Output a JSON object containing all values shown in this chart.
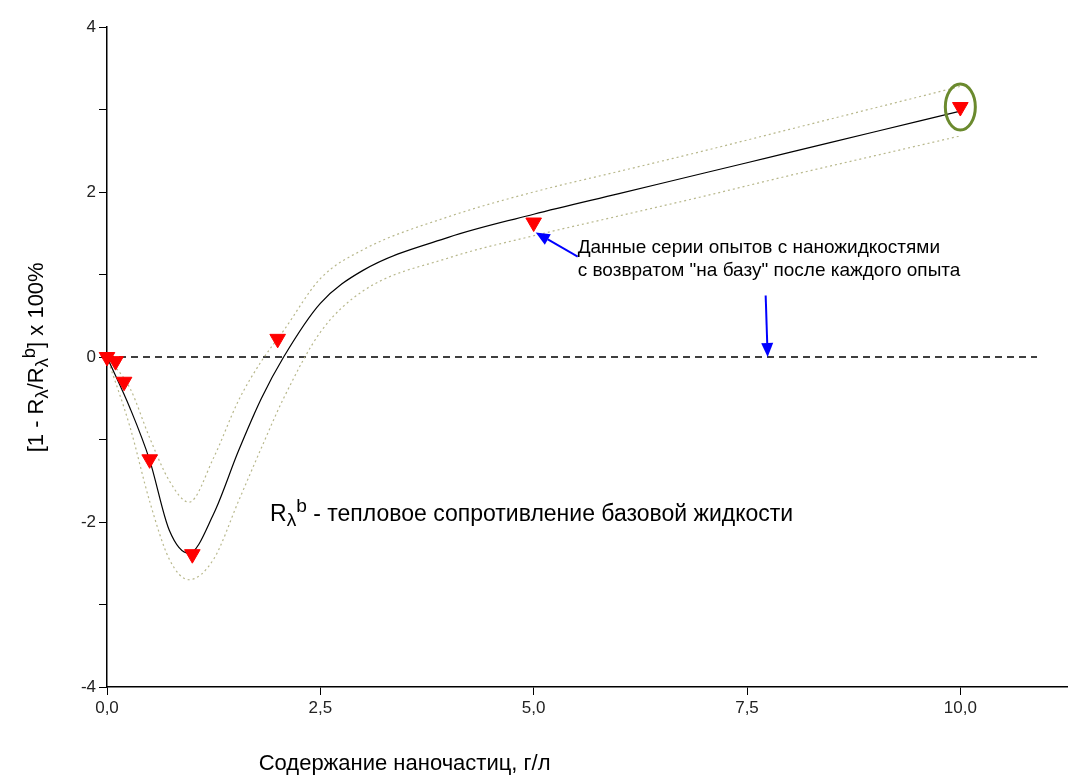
{
  "chart_data": {
    "type": "scatter",
    "xlabel": "Содержание наночастиц, г/л",
    "ylabel": "[1 - R$_{λ}$/R$_{λ}$$^{b}$] x 100%",
    "xlim": [
      0,
      11.25
    ],
    "xticks": [
      {
        "value": 0,
        "label": "0,0"
      },
      {
        "value": 2.5,
        "label": "2,5"
      },
      {
        "value": 5,
        "label": "5,0"
      },
      {
        "value": 7.5,
        "label": "7,5"
      },
      {
        "value": 10,
        "label": "10,0"
      }
    ],
    "ylim": [
      -4,
      4
    ],
    "yticks": [
      -4,
      {
        "value": -3,
        "label": null
      },
      -2,
      {
        "value": -1,
        "label": null
      },
      0,
      {
        "value": 1,
        "label": null
      },
      2,
      {
        "value": 3,
        "label": null
      },
      4
    ],
    "grid": false,
    "legend": false,
    "marker": "triangle",
    "series": [
      {
        "type": "line",
        "color": "#000000",
        "marker": "none",
        "x": [
          0,
          0.27,
          0.5,
          0.73,
          0.96,
          1.25,
          1.54,
          1.81,
          2.07,
          2.5,
          3,
          4,
          5,
          6,
          7,
          8,
          9,
          10
        ],
        "values": [
          0,
          -0.62,
          -1.25,
          -2.1,
          -2.38,
          -1.9,
          -1.14,
          -0.5,
          0,
          0.65,
          1.05,
          1.45,
          1.73,
          1.98,
          2.23,
          2.48,
          2.73,
          2.98
        ]
      },
      {
        "type": "line",
        "color": "#b8b88c",
        "marker": "none",
        "line_style": "dotted",
        "x": [
          0,
          0.27,
          0.5,
          0.73,
          0.96,
          1.25,
          1.54,
          1.81,
          2.07,
          2.5,
          3,
          4,
          5,
          6,
          7,
          8,
          9,
          10
        ],
        "values": [
          0,
          -0.85,
          -1.75,
          -2.45,
          -2.7,
          -2.45,
          -1.75,
          -1.1,
          -0.5,
          0.3,
          0.8,
          1.2,
          1.47,
          1.71,
          1.95,
          2.2,
          2.44,
          2.68
        ]
      },
      {
        "type": "line",
        "color": "#b8b88c",
        "marker": "none",
        "line_style": "dotted",
        "x": [
          0,
          0.27,
          0.5,
          0.73,
          0.96,
          1.25,
          1.54,
          1.81,
          2.07,
          2.5,
          3,
          4,
          5,
          6,
          7,
          8,
          9,
          10
        ],
        "values": [
          0,
          -0.38,
          -0.98,
          -1.5,
          -1.76,
          -1.22,
          -0.53,
          -0.05,
          0.32,
          0.95,
          1.3,
          1.7,
          2.0,
          2.25,
          2.5,
          2.76,
          3.02,
          3.28
        ]
      },
      {
        "color": "#ff0000",
        "x": [
          0,
          0.1,
          0.2,
          0.5,
          1.0,
          2.0,
          5.0,
          10.0
        ],
        "values": [
          0,
          -0.05,
          -0.3,
          -1.24,
          -2.39,
          0.22,
          1.63,
          3.03
        ]
      }
    ],
    "ref_lines": [
      {
        "axis": "y",
        "value": 0,
        "color": "#000000",
        "line_style": "dashed"
      }
    ],
    "annotations": [
      {
        "text": "Данные серии опытов с наножидкостями\nс возвратом \"на базу\" после каждого опыта",
        "x": 5,
        "y": 1.63
      },
      "R$_{λ}$$^{b}$ - тепловое сопротивление базовой жидкости"
    ]
  }
}
